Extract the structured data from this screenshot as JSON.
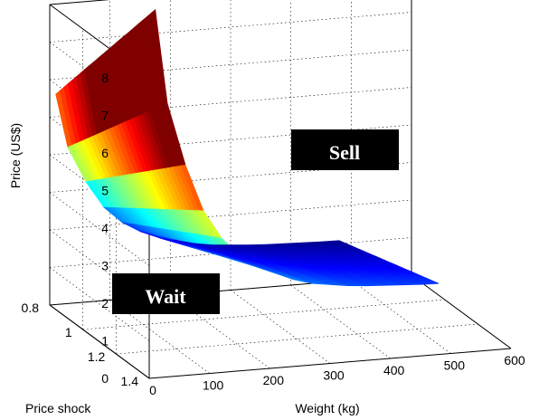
{
  "chart_data": {
    "type": "surface",
    "title": "",
    "xlabel": "Weight (kg)",
    "ylabel": "Price shock",
    "zlabel": "Price (US$)",
    "xlim": [
      0,
      600
    ],
    "ylim": [
      0.8,
      1.4
    ],
    "zlim": [
      0,
      8
    ],
    "xticks": [
      "0",
      "100",
      "200",
      "300",
      "400",
      "500",
      "600"
    ],
    "yticks": [
      "0.8",
      "1",
      "1.2",
      "1.4"
    ],
    "zticks": [
      "0",
      "1",
      "2",
      "3",
      "4",
      "5",
      "6",
      "7",
      "8"
    ],
    "grid": true,
    "colormap": "jet",
    "boundary_curve": {
      "weight": [
        10,
        30,
        60,
        90,
        120,
        150,
        180,
        210,
        240,
        270,
        300,
        330,
        360,
        390,
        420,
        450,
        480
      ],
      "price": [
        7.0,
        5.2,
        4.0,
        3.1,
        2.55,
        2.2,
        1.95,
        1.8,
        1.65,
        1.55,
        1.5,
        1.45,
        1.42,
        1.4,
        1.38,
        1.36,
        1.35
      ]
    },
    "price_shock_range": [
      0.8,
      1.4
    ],
    "regions": [
      {
        "label": "Sell",
        "position": "above surface"
      },
      {
        "label": "Wait",
        "position": "below surface"
      }
    ]
  }
}
